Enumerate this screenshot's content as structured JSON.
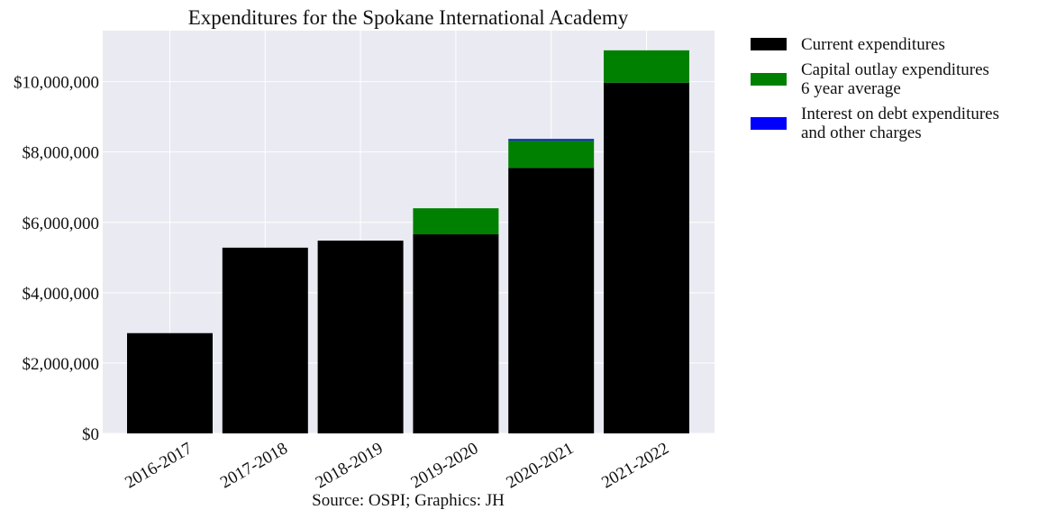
{
  "chart_data": {
    "type": "bar",
    "stacked": true,
    "title": "Expenditures for the Spokane International Academy",
    "xlabel": "Source: OSPI; Graphics: JH",
    "ylabel": "",
    "categories": [
      "2016-2017",
      "2017-2018",
      "2018-2019",
      "2019-2020",
      "2020-2021",
      "2021-2022"
    ],
    "series": [
      {
        "name": "Current expenditures",
        "legend_lines": [
          "Current expenditures"
        ],
        "color": "#000000",
        "values": [
          2850000,
          5280000,
          5480000,
          5660000,
          7550000,
          9970000
        ]
      },
      {
        "name": "Capital outlay expenditures 6 year average",
        "legend_lines": [
          "Capital outlay expenditures",
          "6 year average"
        ],
        "color": "#008000",
        "values": [
          0,
          0,
          0,
          740000,
          780000,
          920000
        ]
      },
      {
        "name": "Interest on debt expenditures and other charges",
        "legend_lines": [
          "Interest on debt expenditures",
          "and other charges"
        ],
        "color": "#0000ff",
        "values": [
          0,
          0,
          0,
          0,
          40000,
          0
        ]
      }
    ],
    "ylim": [
      0,
      11450000
    ],
    "yticks": [
      0,
      2000000,
      4000000,
      6000000,
      8000000,
      10000000
    ],
    "ytick_labels": [
      "$0",
      "$2,000,000",
      "$4,000,000",
      "$6,000,000",
      "$8,000,000",
      "$10,000,000"
    ],
    "grid": true,
    "legend_position": "outside-right-top"
  }
}
